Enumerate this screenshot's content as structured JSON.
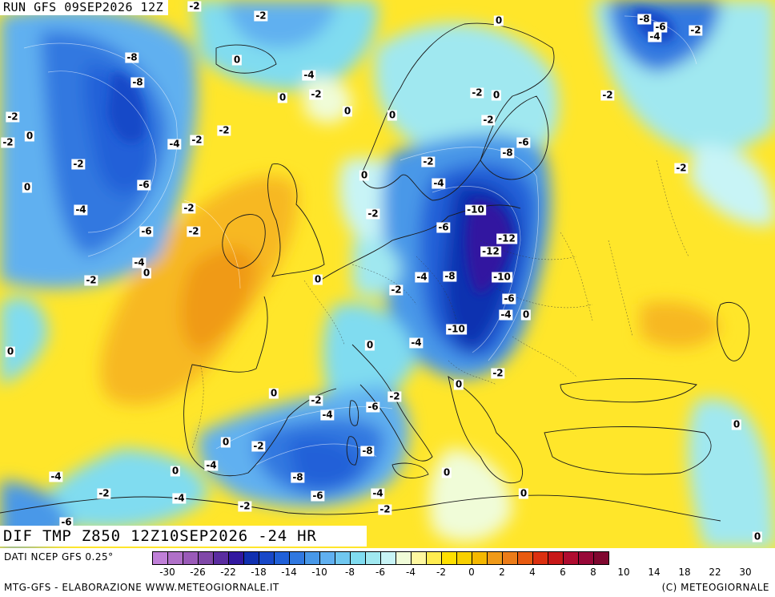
{
  "header": {
    "run": "RUN GFS 09SEP2026 12Z"
  },
  "title": "DIF TMP Z850 12Z10SEP2026 -24 HR",
  "footer": {
    "source": "DATI NCEP GFS 0.25°",
    "credit": "MTG-GFS - ELABORAZIONE WWW.METEOGIORNALE.IT",
    "copyright": "(C) METEOGIORNALE"
  },
  "legend": {
    "colors": [
      "#c080d8",
      "#b070c8",
      "#9a5ab8",
      "#8048a8",
      "#5a2ca0",
      "#3218a0",
      "#1030b0",
      "#1848c8",
      "#2060d8",
      "#3078e0",
      "#4898e8",
      "#60b0f0",
      "#70c8f0",
      "#80dcf0",
      "#a0e8f0",
      "#c8f4f6",
      "#f0fcd8",
      "#fff8a0",
      "#ffec50",
      "#ffe000",
      "#f8d000",
      "#f5b800",
      "#f09a18",
      "#ec7c18",
      "#e85a10",
      "#dc3010",
      "#c81818",
      "#b00c30",
      "#980838",
      "#800830"
    ],
    "ticks": [
      "-30",
      "-26",
      "-22",
      "-18",
      "-14",
      "-10",
      "-8",
      "-6",
      "-4",
      "-2",
      "0",
      "2",
      "4",
      "6",
      "8",
      "10",
      "14",
      "18",
      "22",
      "30"
    ]
  },
  "contour_labels": [
    {
      "v": "-2"
    },
    {
      "v": "-2"
    },
    {
      "v": "-8"
    },
    {
      "v": "-6"
    },
    {
      "v": "-4"
    },
    {
      "v": "-2"
    },
    {
      "v": "0"
    },
    {
      "v": "-8"
    },
    {
      "v": "-8"
    },
    {
      "v": "0"
    },
    {
      "v": "-4"
    },
    {
      "v": "0"
    },
    {
      "v": "-2"
    },
    {
      "v": "0"
    },
    {
      "v": "-2"
    },
    {
      "v": "0"
    },
    {
      "v": "-2"
    },
    {
      "v": "-2"
    },
    {
      "v": "0"
    },
    {
      "v": "-2"
    },
    {
      "v": "0"
    },
    {
      "v": "0"
    },
    {
      "v": "-2"
    },
    {
      "v": "-2"
    },
    {
      "v": "-6"
    },
    {
      "v": "-8"
    },
    {
      "v": "-4"
    },
    {
      "v": "-2"
    },
    {
      "v": "-2"
    },
    {
      "v": "-2"
    },
    {
      "v": "-2"
    },
    {
      "v": "0"
    },
    {
      "v": "-4"
    },
    {
      "v": "-6"
    },
    {
      "v": "-4"
    },
    {
      "v": "-2"
    },
    {
      "v": "-2"
    },
    {
      "v": "-10"
    },
    {
      "v": "-6"
    },
    {
      "v": "-6"
    },
    {
      "v": "-2"
    },
    {
      "v": "-12"
    },
    {
      "v": "-12"
    },
    {
      "v": "-4"
    },
    {
      "v": "0"
    },
    {
      "v": "-2"
    },
    {
      "v": "0"
    },
    {
      "v": "-4"
    },
    {
      "v": "-8"
    },
    {
      "v": "-10"
    },
    {
      "v": "-2"
    },
    {
      "v": "-6"
    },
    {
      "v": "-4"
    },
    {
      "v": "0"
    },
    {
      "v": "0"
    },
    {
      "v": "-10"
    },
    {
      "v": "0"
    },
    {
      "v": "-4"
    },
    {
      "v": "-2"
    },
    {
      "v": "0"
    },
    {
      "v": "-2"
    },
    {
      "v": "-2"
    },
    {
      "v": "-6"
    },
    {
      "v": "-4"
    },
    {
      "v": "0"
    },
    {
      "v": "-2"
    },
    {
      "v": "-8"
    },
    {
      "v": "0"
    },
    {
      "v": "-4"
    },
    {
      "v": "0"
    },
    {
      "v": "-4"
    },
    {
      "v": "-8"
    },
    {
      "v": "-2"
    },
    {
      "v": "-6"
    },
    {
      "v": "-4"
    },
    {
      "v": "-4"
    },
    {
      "v": "0"
    },
    {
      "v": "-2"
    },
    {
      "v": "0"
    },
    {
      "v": "-6"
    },
    {
      "v": "-2"
    },
    {
      "v": "0"
    },
    {
      "v": "0"
    }
  ]
}
